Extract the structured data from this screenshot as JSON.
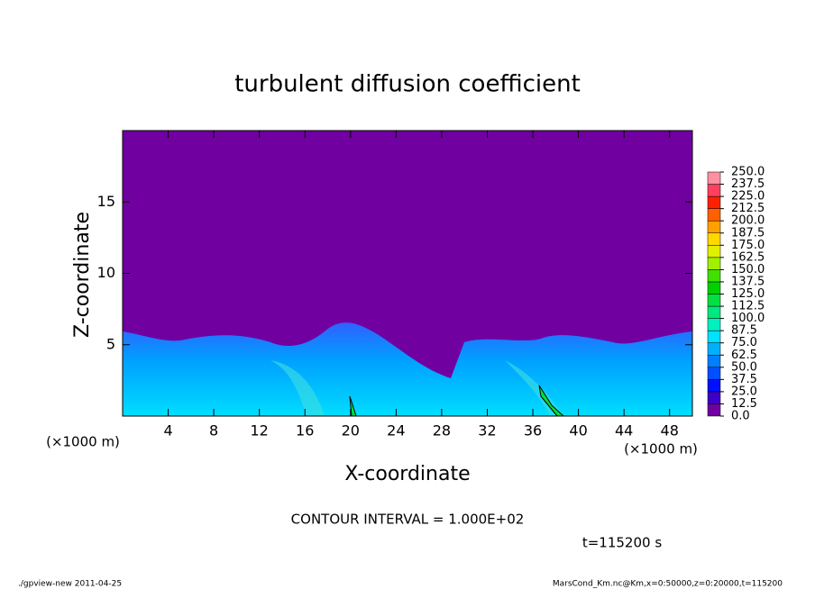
{
  "chart_data": {
    "type": "contour",
    "title": "turbulent diffusion coefficient",
    "xlabel": "X-coordinate",
    "ylabel": "Z-coordinate",
    "xunit": "(×1000 m)",
    "yunit": "(×1000 m)",
    "xlim": [
      0,
      50
    ],
    "xticks": [
      4,
      8,
      12,
      16,
      20,
      24,
      28,
      32,
      36,
      40,
      44,
      48
    ],
    "ylim": [
      0,
      20
    ],
    "yticks": [
      5,
      10,
      15
    ],
    "colorbar": {
      "levels": [
        {
          "value": 0,
          "label": "0.0"
        },
        {
          "value": 12.5,
          "label": "12.5"
        },
        {
          "value": 25,
          "label": "25.0"
        },
        {
          "value": 37.5,
          "label": "37.5"
        },
        {
          "value": 50,
          "label": "50.0"
        },
        {
          "value": 62.5,
          "label": "62.5"
        },
        {
          "value": 75,
          "label": "75.0"
        },
        {
          "value": 87.5,
          "label": "87.5"
        },
        {
          "value": 100,
          "label": "100.0"
        },
        {
          "value": 112.5,
          "label": "112.5"
        },
        {
          "value": 125,
          "label": "125.0"
        },
        {
          "value": 137.5,
          "label": "137.5"
        },
        {
          "value": 150,
          "label": "150.0"
        },
        {
          "value": 162.5,
          "label": "162.5"
        },
        {
          "value": 175,
          "label": "175.0"
        },
        {
          "value": 187.5,
          "label": "187.5"
        },
        {
          "value": 200,
          "label": "200.0"
        },
        {
          "value": 212.5,
          "label": "212.5"
        },
        {
          "value": 225,
          "label": "225.0"
        },
        {
          "value": 237.5,
          "label": "237.5"
        },
        {
          "value": 250,
          "label": "250.0"
        }
      ],
      "colors": [
        "#7000a0",
        "#3c00c8",
        "#0010ff",
        "#0050ff",
        "#0080ff",
        "#00b0ff",
        "#00e0ff",
        "#00f0c0",
        "#00e880",
        "#00e040",
        "#00d000",
        "#40e000",
        "#a0f000",
        "#e0f000",
        "#ffd800",
        "#ffa000",
        "#ff6000",
        "#ff2000",
        "#ff4060",
        "#ff90a0"
      ]
    },
    "contour_interval": "CONTOUR INTERVAL = 1.000E+02",
    "time_label": "t=115200 s",
    "footer_left": "./gpview-new   2011-04-25",
    "footer_right": "MarsCond_Km.nc@Km,x=0:50000,z=0:20000,t=115200"
  }
}
